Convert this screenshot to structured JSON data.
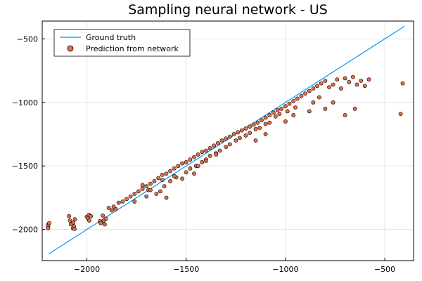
{
  "chart_data": {
    "type": "scatter",
    "title": "Sampling neural network - US",
    "xlabel": "",
    "ylabel": "",
    "xlim": [
      -2225,
      -355
    ],
    "ylim": [
      -2245,
      -360
    ],
    "x_ticks": [
      -2000,
      -1500,
      -1000,
      -500
    ],
    "x_tick_labels": [
      "−2000",
      "−1500",
      "−1000",
      "−500"
    ],
    "y_ticks": [
      -500,
      -1000,
      -1500,
      -2000
    ],
    "y_tick_labels": [
      "−500",
      "−1000",
      "−1500",
      "−2000"
    ],
    "grid": true,
    "legend_position": "top-left",
    "series": [
      {
        "name": "Ground truth",
        "kind": "line",
        "color": "#009af9",
        "x": [
          -2190,
          -400
        ],
        "y": [
          -2190,
          -400
        ]
      },
      {
        "name": "Prediction from network",
        "kind": "scatter",
        "color": "#e26f46",
        "x": [
          -2195,
          -2195,
          -2195,
          -2190,
          -2090,
          -2085,
          -2080,
          -2070,
          -2065,
          -2060,
          -2062,
          -2068,
          -2000,
          -1995,
          -1990,
          -1988,
          -1980,
          -1935,
          -1930,
          -1920,
          -1915,
          -1910,
          -1905,
          -1890,
          -1875,
          -1865,
          -1855,
          -1840,
          -1820,
          -1800,
          -1780,
          -1760,
          -1740,
          -1720,
          -1700,
          -1680,
          -1660,
          -1640,
          -1620,
          -1600,
          -1580,
          -1560,
          -1540,
          -1520,
          -1500,
          -1480,
          -1460,
          -1440,
          -1420,
          -1400,
          -1380,
          -1360,
          -1340,
          -1320,
          -1300,
          -1280,
          -1260,
          -1240,
          -1220,
          -1200,
          -1180,
          -1160,
          -1140,
          -1120,
          -1100,
          -1080,
          -1060,
          -1040,
          -1020,
          -1000,
          -980,
          -960,
          -940,
          -920,
          -900,
          -880,
          -860,
          -840,
          -820,
          -800,
          -780,
          -760,
          -740,
          -720,
          -700,
          -680,
          -660,
          -640,
          -620,
          -600,
          -580,
          -1720,
          -1690,
          -1650,
          -1610,
          -1580,
          -1550,
          -1500,
          -1450,
          -1400,
          -1350,
          -1300,
          -1250,
          -1200,
          -1150,
          -1100,
          -1050,
          -1760,
          -1700,
          -1620,
          -1560,
          -1480,
          -1420,
          -1380,
          -1330,
          -1280,
          -1230,
          -1180,
          -1130,
          -1080,
          -1030,
          -990,
          -950,
          -410,
          -420,
          -1150,
          -1100,
          -1000,
          -960,
          -880,
          -860,
          -830,
          -800,
          -760,
          -700,
          -650,
          -1600,
          -1630,
          -1680,
          -1520,
          -1460,
          -1440,
          -1400,
          -1350
        ],
        "y": [
          -1960,
          -1975,
          -1990,
          -1950,
          -1895,
          -1930,
          -1960,
          -1990,
          -1975,
          -1920,
          -1995,
          -1945,
          -1900,
          -1910,
          -1885,
          -1930,
          -1895,
          -1935,
          -1950,
          -1890,
          -1930,
          -1960,
          -1915,
          -1830,
          -1850,
          -1820,
          -1840,
          -1790,
          -1780,
          -1760,
          -1740,
          -1720,
          -1700,
          -1680,
          -1660,
          -1640,
          -1620,
          -1595,
          -1570,
          -1560,
          -1540,
          -1520,
          -1500,
          -1480,
          -1470,
          -1450,
          -1430,
          -1410,
          -1390,
          -1380,
          -1360,
          -1340,
          -1320,
          -1300,
          -1285,
          -1270,
          -1250,
          -1235,
          -1220,
          -1205,
          -1190,
          -1175,
          -1160,
          -1140,
          -1120,
          -1100,
          -1080,
          -1060,
          -1050,
          -1030,
          -1010,
          -990,
          -970,
          -950,
          -930,
          -910,
          -890,
          -870,
          -850,
          -830,
          -880,
          -860,
          -820,
          -890,
          -810,
          -840,
          -800,
          -860,
          -830,
          -870,
          -820,
          -1650,
          -1690,
          -1720,
          -1660,
          -1620,
          -1590,
          -1550,
          -1500,
          -1450,
          -1400,
          -1350,
          -1300,
          -1260,
          -1210,
          -1170,
          -1110,
          -1780,
          -1740,
          -1610,
          -1580,
          -1520,
          -1470,
          -1420,
          -1380,
          -1330,
          -1280,
          -1240,
          -1200,
          -1160,
          -1090,
          -1070,
          -1040,
          -850,
          -1090,
          -1300,
          -1250,
          -1150,
          -1100,
          -1070,
          -1000,
          -960,
          -1050,
          -1000,
          -1100,
          -1050,
          -1750,
          -1700,
          -1690,
          -1600,
          -1560,
          -1500,
          -1460,
          -1410
        ]
      }
    ]
  }
}
